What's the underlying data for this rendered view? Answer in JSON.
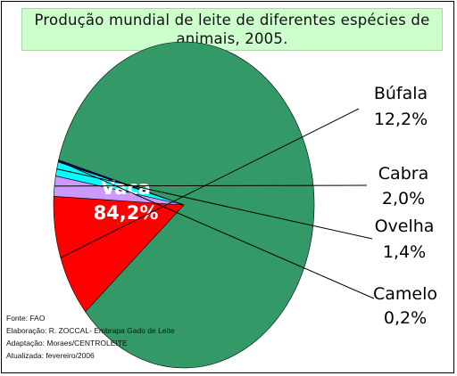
{
  "title_line1": "Produção mundial de leite de diferentes espécies de",
  "title_line2": "animais, 2005.",
  "chart_data": {
    "type": "pie",
    "title": "Produção mundial de leite de diferentes espécies de animais, 2005.",
    "slices": [
      {
        "name": "Vaca",
        "value": 84.2,
        "label": "84,2%",
        "color": "#339966"
      },
      {
        "name": "Búfala",
        "value": 12.2,
        "label": "12,2%",
        "color": "#ff0000"
      },
      {
        "name": "Cabra",
        "value": 2.0,
        "label": "2,0%",
        "color": "#cc99ff"
      },
      {
        "name": "Ovelha",
        "value": 1.4,
        "label": "1,4%",
        "color": "#00ffff"
      },
      {
        "name": "Camelo",
        "value": 0.2,
        "label": "0,2%",
        "color": "#000080"
      }
    ]
  },
  "source": {
    "fonte": "Fonte: FAO",
    "elaboracao": "Elaboração: R. ZOCCAL- Embrapa Gado de Leite",
    "adaptacao": "Adaptação: Moraes/CENTROLEITE",
    "atualizada": "Atualizada: fevereiro/2006"
  }
}
